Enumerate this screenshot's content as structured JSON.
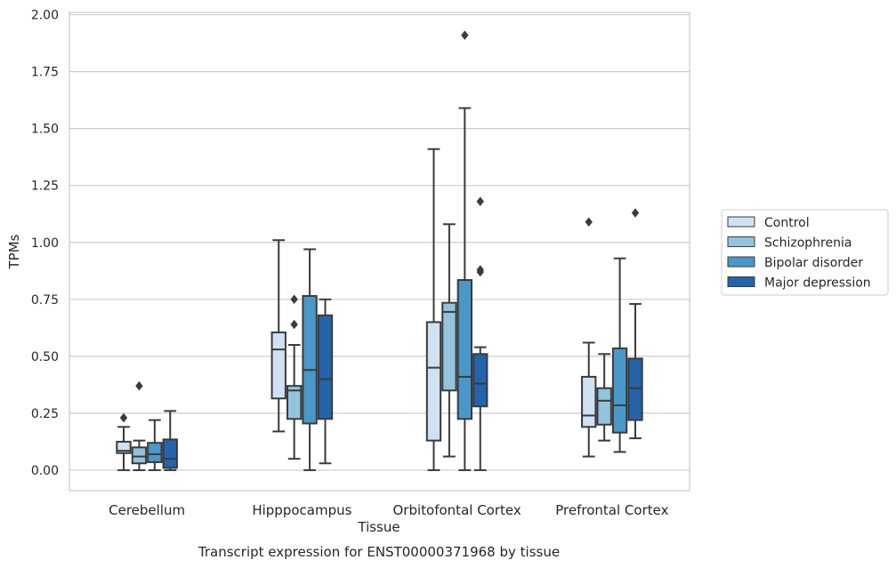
{
  "caption": "Transcript expression for ENST00000371968 by tissue",
  "chart_data": {
    "type": "box",
    "title": "",
    "xlabel": "Tissue",
    "ylabel": "TPMs",
    "ylim": [
      -0.09,
      2.01
    ],
    "yticks": [
      0.0,
      0.25,
      0.5,
      0.75,
      1.0,
      1.25,
      1.5,
      1.75,
      2.0
    ],
    "ytick_labels": [
      "0.00",
      "0.25",
      "0.50",
      "0.75",
      "1.00",
      "1.25",
      "1.50",
      "1.75",
      "2.00"
    ],
    "grid": "horizontal",
    "legend_position": "right",
    "categories": [
      "Cerebellum",
      "Hipppocampus",
      "Orbitofontal Cortex",
      "Prefrontal Cortex"
    ],
    "series": [
      {
        "name": "Control",
        "color": "#cfe1f2",
        "boxes": [
          {
            "whislo": 0.0,
            "q1": 0.075,
            "med": 0.085,
            "q3": 0.125,
            "whishi": 0.19,
            "fliers": [
              0.23
            ]
          },
          {
            "whislo": 0.17,
            "q1": 0.315,
            "med": 0.53,
            "q3": 0.605,
            "whishi": 1.01,
            "fliers": []
          },
          {
            "whislo": 0.0,
            "q1": 0.13,
            "med": 0.45,
            "q3": 0.65,
            "whishi": 1.41,
            "fliers": []
          },
          {
            "whislo": 0.06,
            "q1": 0.19,
            "med": 0.24,
            "q3": 0.41,
            "whishi": 0.56,
            "fliers": [
              1.09
            ]
          }
        ]
      },
      {
        "name": "Schizophrenia",
        "color": "#93c4de",
        "boxes": [
          {
            "whislo": 0.0,
            "q1": 0.03,
            "med": 0.06,
            "q3": 0.1,
            "whishi": 0.13,
            "fliers": [
              0.37
            ]
          },
          {
            "whislo": 0.05,
            "q1": 0.225,
            "med": 0.35,
            "q3": 0.37,
            "whishi": 0.55,
            "fliers": [
              0.64,
              0.75
            ]
          },
          {
            "whislo": 0.06,
            "q1": 0.35,
            "med": 0.695,
            "q3": 0.735,
            "whishi": 1.08,
            "fliers": []
          },
          {
            "whislo": 0.13,
            "q1": 0.2,
            "med": 0.305,
            "q3": 0.36,
            "whishi": 0.51,
            "fliers": []
          }
        ]
      },
      {
        "name": "Bipolar disorder",
        "color": "#4a98c9",
        "boxes": [
          {
            "whislo": 0.0,
            "q1": 0.035,
            "med": 0.07,
            "q3": 0.12,
            "whishi": 0.22,
            "fliers": []
          },
          {
            "whislo": 0.0,
            "q1": 0.205,
            "med": 0.44,
            "q3": 0.765,
            "whishi": 0.97,
            "fliers": []
          },
          {
            "whislo": 0.0,
            "q1": 0.225,
            "med": 0.41,
            "q3": 0.835,
            "whishi": 1.59,
            "fliers": [
              1.91
            ]
          },
          {
            "whislo": 0.08,
            "q1": 0.165,
            "med": 0.285,
            "q3": 0.535,
            "whishi": 0.93,
            "fliers": []
          }
        ]
      },
      {
        "name": "Major depression",
        "color": "#2364aa",
        "boxes": [
          {
            "whislo": 0.0,
            "q1": 0.01,
            "med": 0.05,
            "q3": 0.135,
            "whishi": 0.26,
            "fliers": []
          },
          {
            "whislo": 0.03,
            "q1": 0.225,
            "med": 0.4,
            "q3": 0.68,
            "whishi": 0.75,
            "fliers": []
          },
          {
            "whislo": 0.0,
            "q1": 0.28,
            "med": 0.38,
            "q3": 0.51,
            "whishi": 0.54,
            "fliers": [
              0.87,
              0.88,
              1.18
            ]
          },
          {
            "whislo": 0.14,
            "q1": 0.22,
            "med": 0.36,
            "q3": 0.49,
            "whishi": 0.73,
            "fliers": [
              1.13
            ]
          }
        ]
      }
    ]
  }
}
